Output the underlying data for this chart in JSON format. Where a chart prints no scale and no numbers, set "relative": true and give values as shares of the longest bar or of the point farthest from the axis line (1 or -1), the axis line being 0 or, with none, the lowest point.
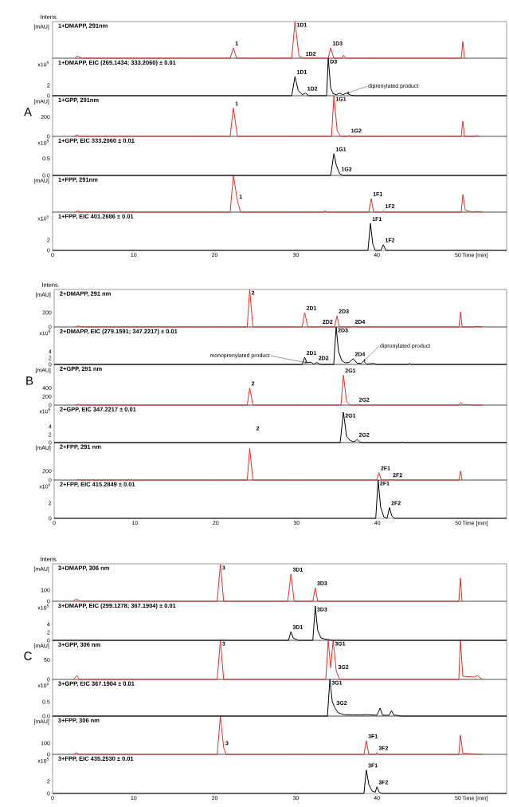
{
  "chart_data": [
    {
      "type": "line",
      "title": "1+DMAPP, 291nm",
      "ylabel": "[mAU]",
      "relative": true,
      "tick_labels": false,
      "xlim": [
        0,
        56
      ],
      "xticks": [
        0,
        10,
        20,
        30,
        40,
        50
      ],
      "annotations": [
        "Intens.",
        {
          "text": "1",
          "x": 22.3,
          "y": 0.28
        },
        {
          "text": "1D1",
          "x": 29.9,
          "y": 1
        },
        {
          "text": "1D2",
          "x": 31.0,
          "y": 0
        },
        {
          "text": "1D3",
          "x": 34.3,
          "y": 0.28
        }
      ],
      "series": [
        {
          "color": "#e0302a",
          "x": [
            2.8,
            3.0,
            3.3,
            3.6,
            21.9,
            22.3,
            22.7,
            29.5,
            29.9,
            30.4,
            31.0,
            34.0,
            34.3,
            34.7,
            35.7,
            35.9,
            36.2,
            50.4,
            50.6,
            50.8
          ],
          "values": [
            0,
            0.06,
            0.03,
            0,
            0,
            0.28,
            0,
            0,
            1,
            0.05,
            0,
            0,
            0.28,
            0,
            0,
            0.08,
            0,
            0,
            0.46,
            0
          ]
        }
      ]
    },
    {
      "type": "line",
      "title": "1+DMAPP, EIC (265.1434; 333.2060) ± 0.01",
      "ylabel": "x10$^{5}$",
      "tick_labels": "y",
      "xlim": [
        0,
        56
      ],
      "xticks": [
        0,
        10,
        20,
        30,
        40,
        50
      ],
      "ylim": [
        0,
        7.2
      ],
      "yticks": [
        0,
        2,
        {
          "value": 4,
          "label": null
        },
        {
          "value": 6,
          "label": null
        }
      ],
      "annotations": [
        {
          "text": "1D1",
          "x": 29.9,
          "y": 3.7
        },
        {
          "text": "1D2",
          "x": 31.2,
          "y": 0.5
        },
        {
          "text": "D3",
          "x": 34.0,
          "y": 7.2
        },
        {
          "text": "diprenylated product",
          "x": 36.3,
          "y": 0.5
        }
      ],
      "series": [
        {
          "color": "#000000",
          "x": [
            0,
            29.5,
            29.9,
            30.3,
            30.8,
            31.2,
            31.6,
            33.8,
            34.0,
            34.3,
            34.6,
            35.0,
            35.4,
            35.8,
            36.3,
            36.8,
            37.2,
            56
          ],
          "values": [
            0,
            0,
            3.7,
            1.0,
            0.2,
            0.5,
            0,
            0,
            7.2,
            1.5,
            0.4,
            0.2,
            0.5,
            0.2,
            0.5,
            0.1,
            0,
            0
          ]
        }
      ]
    },
    {
      "type": "line",
      "title": "1+GPP, 291nm",
      "ylabel": "[mAU]",
      "tick_labels": "y",
      "xlim": [
        0,
        56
      ],
      "xticks": [
        0,
        10,
        20,
        30,
        40,
        50
      ],
      "ylim": [
        0,
        420
      ],
      "yticks": [
        0,
        200
      ],
      "annotations": [
        "A",
        {
          "text": "1",
          "x": 22.3,
          "y": 292
        },
        {
          "text": "1G1",
          "x": 34.7,
          "y": 420
        },
        {
          "text": "1G2",
          "x": 36.6,
          "y": 12
        }
      ],
      "series": [
        {
          "color": "#e0302a",
          "x": [
            2.7,
            3.0,
            3.3,
            21.9,
            22.3,
            22.8,
            34.4,
            34.7,
            35.1,
            35.5,
            36.4,
            36.6,
            36.8,
            50.4,
            50.6,
            50.8,
            52,
            52.3,
            52.6
          ],
          "values": [
            0,
            15,
            0,
            0,
            292,
            0,
            0,
            420,
            60,
            0,
            0,
            12,
            0,
            0,
            158,
            0,
            0,
            8,
            0
          ]
        }
      ]
    },
    {
      "type": "line",
      "title": "1+GPP, EIC 333.2060 ± 0.01",
      "ylabel": "x10$^{5}$",
      "tick_labels": "y",
      "xlim": [
        0,
        56
      ],
      "xticks": [
        0,
        10,
        20,
        30,
        40,
        50
      ],
      "ylim": [
        0,
        1.15
      ],
      "yticks": [
        {
          "value": 0,
          "label": "0.0"
        },
        {
          "value": 0.5,
          "label": "0.5"
        }
      ],
      "annotations": [
        {
          "text": "1G1",
          "x": 34.7,
          "y": 0.64
        },
        {
          "text": "1G2",
          "x": 35.4,
          "y": 0.05
        }
      ],
      "series": [
        {
          "color": "#000000",
          "x": [
            0,
            34.3,
            34.7,
            35.0,
            35.4,
            35.8,
            56
          ],
          "values": [
            0,
            0,
            0.64,
            0.3,
            0.05,
            0,
            0
          ]
        }
      ]
    },
    {
      "type": "line",
      "title": "1+FPP, 291nm",
      "ylabel": "[mAU]",
      "relative": true,
      "tick_labels": false,
      "xlim": [
        0,
        56
      ],
      "xticks": [
        0,
        10,
        20,
        30,
        40,
        50
      ],
      "annotations": [
        {
          "text": "1",
          "x": 22.8,
          "y": 0.3
        },
        {
          "text": "1F1",
          "x": 39.3,
          "y": 0.37
        },
        {
          "text": "1F2",
          "x": 40.8,
          "y": 0.04
        }
      ],
      "series": [
        {
          "color": "#e0302a",
          "x": [
            2.8,
            3.1,
            3.4,
            21.9,
            22.3,
            22.8,
            23.2,
            33.3,
            33.6,
            34.0,
            39.0,
            39.3,
            39.6,
            40.6,
            40.8,
            41.0,
            50.4,
            50.6,
            50.9,
            51.8,
            52.2,
            53.0
          ],
          "values": [
            0,
            0.04,
            0,
            0,
            1,
            0.3,
            0,
            0,
            0.03,
            0,
            0,
            0.37,
            0,
            0,
            0.04,
            0,
            0,
            0.48,
            0.05,
            0,
            0.02,
            0
          ]
        }
      ]
    },
    {
      "type": "line",
      "title": "1+FPP, EIC 401.2686 ± 0.01",
      "ylabel": "x10$^{5}$",
      "xlabel": "Time [min]",
      "xlim": [
        0,
        56
      ],
      "xticks": [
        0,
        10,
        20,
        30,
        40,
        50
      ],
      "ylim": [
        0,
        7.4
      ],
      "yticks": [
        0,
        2,
        {
          "value": 4,
          "label": null
        },
        {
          "value": 6,
          "label": null
        }
      ],
      "annotations": [
        {
          "text": "1F1",
          "x": 39.2,
          "y": 5.2
        },
        {
          "text": "1F2",
          "x": 40.8,
          "y": 1.1
        }
      ],
      "series": [
        {
          "color": "#000000",
          "x": [
            0,
            38.9,
            39.2,
            39.5,
            39.8,
            40.5,
            40.8,
            41.1,
            56
          ],
          "values": [
            0,
            0,
            5.2,
            1.2,
            0,
            0,
            1.1,
            0,
            0
          ]
        }
      ]
    },
    {
      "type": "line",
      "title": "2+DMAPP, 291 nm",
      "ylabel": "[mAU]",
      "tick_labels": "y",
      "xlim": [
        0,
        56
      ],
      "xticks": [
        0,
        10,
        20,
        30,
        40,
        50
      ],
      "ylim": [
        0,
        520
      ],
      "yticks": [
        0,
        200
      ],
      "annotations": [
        "Intens.",
        {
          "text": "2",
          "x": 24.2,
          "y": 520
        },
        {
          "text": "2D1",
          "x": 31.0,
          "y": 200
        },
        {
          "text": "2D2",
          "x": 33.0,
          "y": 10
        },
        {
          "text": "2D3",
          "x": 35.0,
          "y": 155
        },
        {
          "text": "2D4",
          "x": 37.0,
          "y": 10
        }
      ],
      "series": [
        {
          "color": "#e0302a",
          "x": [
            2.6,
            3.0,
            3.4,
            23.9,
            24.2,
            24.6,
            30.7,
            31.0,
            31.4,
            32.8,
            33.0,
            33.2,
            34.7,
            35.0,
            35.3,
            36.8,
            37.0,
            37.3,
            50.1,
            50.3,
            50.5,
            52,
            52.5,
            53
          ],
          "values": [
            0,
            15,
            0,
            0,
            520,
            0,
            0,
            200,
            0,
            0,
            10,
            0,
            0,
            155,
            0,
            0,
            10,
            0,
            0,
            210,
            0,
            0,
            8,
            0
          ]
        }
      ]
    },
    {
      "type": "line",
      "title": "2+DMAPP, EIC (279.1591; 347.2217) ± 0.01",
      "ylabel": "x10$^{5}$",
      "tick_labels": "y",
      "xlim": [
        0,
        56
      ],
      "xticks": [
        0,
        10,
        20,
        30,
        40,
        50
      ],
      "ylim": [
        0,
        11.7
      ],
      "yticks": [
        0,
        2,
        4
      ],
      "annotations": [
        {
          "text": "2D1",
          "x": 31.0,
          "y": 2.2
        },
        {
          "text": "2D2",
          "x": 32.5,
          "y": 0.6
        },
        {
          "text": "2D3",
          "x": 34.9,
          "y": 11.7
        },
        {
          "text": "2D4",
          "x": 37.0,
          "y": 1.8
        },
        {
          "text": "monoprenylated product",
          "x": 31.3,
          "y": 0.5
        },
        {
          "text": "dipronylated product",
          "x": 38.3,
          "y": 1.0
        }
      ],
      "series": [
        {
          "color": "#000000",
          "x": [
            0,
            30.7,
            31.0,
            31.3,
            31.8,
            32.1,
            32.5,
            32.8,
            33.1,
            34.6,
            34.9,
            35.2,
            35.6,
            36.0,
            36.5,
            37.0,
            37.5,
            38.0,
            38.3,
            38.7,
            39.5,
            40.0,
            43.8,
            44.0,
            44.2,
            56
          ],
          "values": [
            0,
            0,
            2.2,
            0.5,
            0.7,
            0.1,
            0.6,
            0.2,
            0,
            0,
            11.7,
            4,
            1.2,
            0.5,
            0.6,
            1.8,
            0.4,
            0.3,
            1.0,
            0.1,
            0.3,
            0,
            0,
            0.3,
            0,
            0
          ]
        }
      ]
    },
    {
      "type": "line",
      "title": "2+GPP, 291 nm",
      "ylabel": "[mAU]",
      "tick_labels": "y",
      "xlim": [
        0,
        56
      ],
      "xticks": [
        0,
        10,
        20,
        30,
        40,
        50
      ],
      "ylim": [
        0,
        950
      ],
      "yticks": [
        0,
        200,
        400
      ],
      "annotations": [
        "B",
        {
          "text": "2",
          "x": 24.2,
          "y": 400
        },
        {
          "text": "2G1",
          "x": 35.8,
          "y": 700
        },
        {
          "text": "2G2",
          "x": 37.5,
          "y": 20
        }
      ],
      "series": [
        {
          "color": "#e0302a",
          "x": [
            2.7,
            3.0,
            3.3,
            23.9,
            24.2,
            24.6,
            35.5,
            35.8,
            36.2,
            36.6,
            37.3,
            37.5,
            37.7,
            50.1,
            50.3,
            50.6,
            51.5,
            53
          ],
          "values": [
            0,
            20,
            0,
            0,
            400,
            0,
            0,
            700,
            80,
            0,
            0,
            20,
            0,
            0,
            60,
            10,
            5,
            0
          ]
        }
      ]
    },
    {
      "type": "line",
      "title": "2+GPP, EIC 347.2217 ± 0.01",
      "ylabel": "x10$^{5}$",
      "tick_labels": "y",
      "xlim": [
        0,
        56
      ],
      "xticks": [
        0,
        10,
        20,
        30,
        40,
        50
      ],
      "ylim": [
        0,
        9.4
      ],
      "yticks": [
        0,
        2,
        4
      ],
      "annotations": [
        "2",
        {
          "text": "2G1",
          "x": 35.8,
          "y": 7.6
        },
        {
          "text": "2G2",
          "x": 37.5,
          "y": 0.8
        }
      ],
      "series": [
        {
          "color": "#000000",
          "x": [
            0,
            35.4,
            35.8,
            36.2,
            36.6,
            37.0,
            37.3,
            37.5,
            37.8,
            38.2,
            43.0,
            43.1,
            43.2,
            56
          ],
          "values": [
            0,
            0,
            7.6,
            1.5,
            0.6,
            0.2,
            0.4,
            0.8,
            0.2,
            0,
            0,
            0.2,
            0,
            0
          ]
        }
      ]
    },
    {
      "type": "line",
      "title": "2+FPP, 291 nm",
      "ylabel": "[mAU]",
      "tick_labels": "y",
      "xlim": [
        0,
        56
      ],
      "xticks": [
        0,
        10,
        20,
        30,
        40,
        50
      ],
      "ylim": [
        0,
        836
      ],
      "yticks": [
        0,
        200
      ],
      "annotations": [
        {
          "text": "2F1",
          "x": 40.2,
          "y": 165
        },
        {
          "text": "2F2",
          "x": 41.7,
          "y": 12
        }
      ],
      "series": [
        {
          "color": "#e0302a",
          "x": [
            2.8,
            3.1,
            3.4,
            23.9,
            24.2,
            24.6,
            39.9,
            40.2,
            40.5,
            41.5,
            41.7,
            41.9,
            50.1,
            50.3,
            50.5
          ],
          "values": [
            0,
            15,
            0,
            0,
            710,
            0,
            0,
            165,
            0,
            0,
            12,
            0,
            0,
            200,
            0
          ]
        }
      ]
    },
    {
      "type": "line",
      "title": "2+FPP, EIC 415.2849 ± 0.01",
      "ylabel": "x10$^{5}$",
      "xlabel": "Time [min]",
      "xlim": [
        0,
        56
      ],
      "xticks": [
        0,
        10,
        20,
        30,
        40,
        50
      ],
      "ylim": [
        0,
        5
      ],
      "yticks": [
        0,
        2,
        {
          "value": 4,
          "label": null
        }
      ],
      "annotations": [
        {
          "text": "2F1",
          "x": 40.1,
          "y": 5
        },
        {
          "text": "2F2",
          "x": 41.5,
          "y": 1.4
        }
      ],
      "series": [
        {
          "color": "#000000",
          "x": [
            0,
            39.8,
            40.1,
            40.4,
            40.8,
            41.2,
            41.5,
            41.8,
            42.1,
            56
          ],
          "values": [
            0,
            0,
            5,
            1.5,
            0.2,
            0,
            1.4,
            0.3,
            0,
            0
          ]
        }
      ]
    },
    {
      "type": "line",
      "title": "3+DMAPP, 306 nm",
      "ylabel": "[mAU]",
      "tick_labels": "y",
      "xlim": [
        0,
        56
      ],
      "xticks": [
        0,
        10,
        20,
        30,
        40,
        50
      ],
      "ylim": [
        0,
        335
      ],
      "yticks": [
        0,
        100
      ],
      "annotations": [
        "Intens.",
        {
          "text": "3",
          "x": 20.7,
          "y": 330
        },
        {
          "text": "3D1",
          "x": 29.4,
          "y": 243
        },
        {
          "text": "3D3",
          "x": 32.4,
          "y": 121
        }
      ],
      "series": [
        {
          "color": "#e0302a",
          "x": [
            2.5,
            2.9,
            3.2,
            3.5,
            20.3,
            20.7,
            21.1,
            29.0,
            29.4,
            29.8,
            32.1,
            32.4,
            32.7,
            50.1,
            50.3,
            50.5
          ],
          "values": [
            0,
            20,
            10,
            0,
            0,
            330,
            0,
            0,
            243,
            0,
            0,
            121,
            0,
            0,
            207,
            0
          ]
        }
      ]
    },
    {
      "type": "line",
      "title": "3+DMAPP, EIC (299.1278; 367.1904) ± 0.01",
      "ylabel": "x10$^{5}$",
      "tick_labels": "y",
      "xlim": [
        0,
        56
      ],
      "xticks": [
        0,
        10,
        20,
        30,
        40,
        50
      ],
      "ylim": [
        0,
        9.8
      ],
      "yticks": [
        0,
        2,
        4
      ],
      "annotations": [
        {
          "text": "3D1",
          "x": 29.4,
          "y": 2.2
        },
        {
          "text": "3D3",
          "x": 32.4,
          "y": 8.6
        }
      ],
      "series": [
        {
          "color": "#000000",
          "x": [
            0,
            29.1,
            29.4,
            29.7,
            30.0,
            30.3,
            32.1,
            32.4,
            32.7,
            33.1,
            33.6,
            34.0,
            34.5,
            56
          ],
          "values": [
            0,
            0,
            2.2,
            0.5,
            0.3,
            0,
            0,
            8.6,
            2.5,
            0.6,
            0.3,
            0.2,
            0,
            0
          ]
        }
      ]
    },
    {
      "type": "line",
      "title": "3+GPP, 306 nm",
      "ylabel": "[mAU]",
      "tick_labels": "y",
      "xlim": [
        0,
        56
      ],
      "xticks": [
        0,
        10,
        20,
        30,
        40,
        50
      ],
      "ylim": [
        0,
        100
      ],
      "yticks": [
        0,
        50
      ],
      "annotations": [
        "C",
        {
          "text": "3",
          "x": 20.7,
          "y": 100
        },
        {
          "text": "3G1",
          "x": 34.6,
          "y": 100
        },
        {
          "text": "3G2",
          "x": 35.0,
          "y": 20
        }
      ],
      "series": [
        {
          "color": "#e0302a",
          "x": [
            2.6,
            3.0,
            3.3,
            20.3,
            20.7,
            21.1,
            33.7,
            34.0,
            34.3,
            34.6,
            35.0,
            35.4,
            50.1,
            50.3,
            50.6,
            52.0,
            52.4,
            53.0
          ],
          "values": [
            0,
            10,
            0,
            0,
            100,
            0,
            0,
            100,
            30,
            100,
            20,
            0,
            0,
            100,
            8,
            6,
            10,
            0
          ]
        }
      ]
    },
    {
      "type": "line",
      "title": "3+GPP, EIC 367.1904 ± 0.01",
      "ylabel": "x10$^{5}$",
      "tick_labels": "y",
      "xlim": [
        0,
        56
      ],
      "xticks": [
        0,
        10,
        20,
        30,
        40,
        50
      ],
      "ylim": [
        0,
        1.28
      ],
      "yticks": [
        {
          "value": 0,
          "label": "0.0"
        },
        {
          "value": 0.5,
          "label": "0.5"
        }
      ],
      "annotations": [
        {
          "text": "3G1",
          "x": 34.2,
          "y": 1.28
        },
        {
          "text": "3G2",
          "x": 34.8,
          "y": 0.3
        }
      ],
      "series": [
        {
          "color": "#000000",
          "x": [
            0,
            33.9,
            34.2,
            34.5,
            34.8,
            35.2,
            35.6,
            36.0,
            37.0,
            38.0,
            38.8,
            40.0,
            40.4,
            40.7,
            41.5,
            41.8,
            42.1,
            42.4,
            43.0,
            56
          ],
          "values": [
            0,
            0,
            1.28,
            0.5,
            0.3,
            0.12,
            0.08,
            0.05,
            0.04,
            0.04,
            0.05,
            0.03,
            0.28,
            0.03,
            0.03,
            0.19,
            0.03,
            0.03,
            0,
            0
          ]
        }
      ]
    },
    {
      "type": "line",
      "title": "3+FPP, 306 nm",
      "ylabel": "[mAU]",
      "tick_labels": "y",
      "xlim": [
        0,
        56
      ],
      "xticks": [
        0,
        10,
        20,
        30,
        40,
        50
      ],
      "ylim": [
        0,
        340
      ],
      "yticks": [
        0,
        100
      ],
      "annotations": [
        {
          "text": "3",
          "x": 21.1,
          "y": 60
        },
        {
          "text": "3F1",
          "x": 38.7,
          "y": 121
        },
        {
          "text": "3F2",
          "x": 40.0,
          "y": 15
        }
      ],
      "series": [
        {
          "color": "#e0302a",
          "x": [
            2.6,
            2.9,
            3.3,
            20.3,
            20.7,
            21.1,
            21.4,
            38.4,
            38.7,
            39.0,
            39.8,
            40.0,
            40.2,
            50.1,
            50.3,
            50.6,
            51.5,
            53
          ],
          "values": [
            0,
            15,
            0,
            0,
            340,
            60,
            0,
            0,
            121,
            0,
            0,
            15,
            0,
            0,
            171,
            10,
            6,
            0
          ]
        }
      ]
    },
    {
      "type": "line",
      "title": "3+FPP, EIC 435.2530 ± 0.01",
      "ylabel": "x10$^{5}$",
      "xlabel": "Time [min]",
      "xlim": [
        0,
        56
      ],
      "xticks": [
        0,
        10,
        20,
        30,
        40,
        50
      ],
      "ylim": [
        0,
        6.5
      ],
      "yticks": [
        0,
        2,
        {
          "value": 4,
          "label": null
        },
        {
          "value": 6,
          "label": null
        }
      ],
      "annotations": [
        {
          "text": "3F1",
          "x": 38.7,
          "y": 3.9
        },
        {
          "text": "3F2",
          "x": 40.0,
          "y": 1.1
        }
      ],
      "series": [
        {
          "color": "#000000",
          "x": [
            0,
            38.4,
            38.7,
            39.0,
            39.4,
            39.8,
            40.0,
            40.3,
            40.6,
            56
          ],
          "values": [
            0,
            0,
            3.9,
            1.5,
            0.4,
            0.2,
            1.1,
            0.2,
            0,
            0
          ]
        }
      ]
    }
  ]
}
